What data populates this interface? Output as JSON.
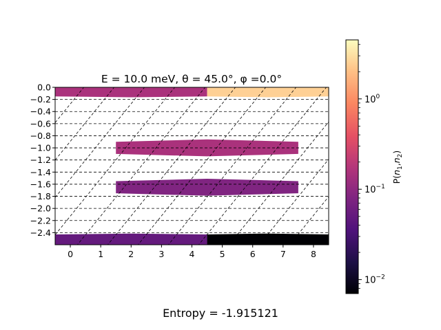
{
  "chart_data": {
    "type": "heatmap",
    "title": "E = 10.0 meV, θ = 45.0°, φ =0.0°",
    "xticks": [
      "0",
      "1",
      "2",
      "3",
      "4",
      "5",
      "6",
      "7",
      "8"
    ],
    "yticks": [
      "0.0",
      "−0.2",
      "−0.4",
      "−0.6",
      "−0.8",
      "−1.0",
      "−1.2",
      "−1.4",
      "−1.6",
      "−1.8",
      "−2.0",
      "−2.2",
      "−2.4"
    ],
    "xlim": [
      -0.5,
      8.5
    ],
    "ylim": [
      -2.6,
      0.0
    ],
    "grid": "dashed black grid and diagonal lines",
    "colorbar": {
      "label": "P(n₁,n₂)",
      "scale": "log",
      "range": [
        0.007,
        4.5
      ],
      "ticks": [
        {
          "base": "10",
          "exp": "0",
          "value": 1
        },
        {
          "base": "10",
          "exp": "−1",
          "value": 0.1
        },
        {
          "base": "10",
          "exp": "−2",
          "value": 0.01
        }
      ],
      "colormap": "magma"
    },
    "bands": [
      {
        "y": -0.05,
        "segments": [
          {
            "x0": -0.5,
            "x1": 4.5,
            "value": 0.15
          },
          {
            "x0": 4.5,
            "x1": 8.5,
            "value": 2.5
          }
        ]
      },
      {
        "y": -1.0,
        "segments": [
          {
            "x0": 1.5,
            "x1": 7.5,
            "value": 0.15
          }
        ]
      },
      {
        "y": -1.65,
        "segments": [
          {
            "x0": 1.5,
            "x1": 7.5,
            "value": 0.08
          }
        ]
      },
      {
        "y": -2.53,
        "segments": [
          {
            "x0": -0.5,
            "x1": 4.5,
            "value": 0.05
          },
          {
            "x0": 4.5,
            "x1": 8.5,
            "value": 0.007
          }
        ]
      }
    ],
    "footer": "Entropy = -1.915121"
  }
}
